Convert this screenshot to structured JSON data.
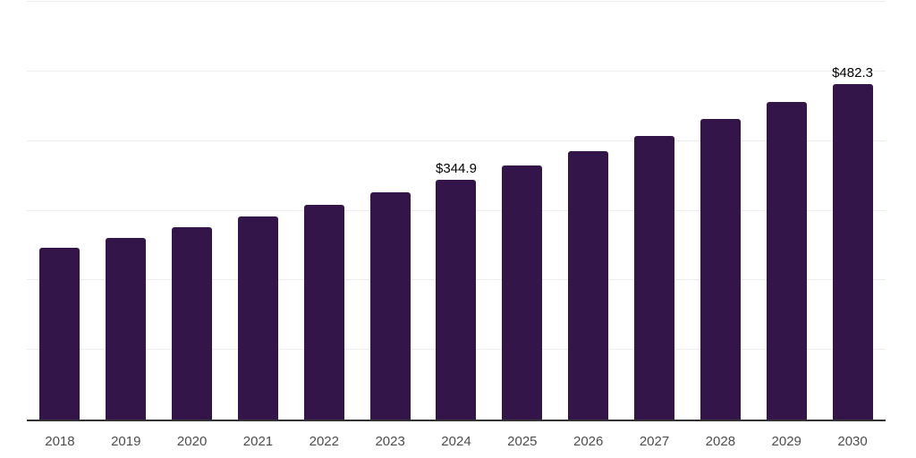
{
  "chart_data": {
    "type": "bar",
    "title": "",
    "xlabel": "",
    "ylabel": "",
    "categories": [
      "2018",
      "2019",
      "2020",
      "2021",
      "2022",
      "2023",
      "2024",
      "2025",
      "2026",
      "2027",
      "2028",
      "2029",
      "2030"
    ],
    "values": [
      246.6,
      260.8,
      275.8,
      291.7,
      308.4,
      326.2,
      344.9,
      364.7,
      385.7,
      407.9,
      431.3,
      456.1,
      482.3
    ],
    "data_labels": {
      "2024": "$344.9",
      "2030": "$482.3"
    },
    "ylim": [
      0,
      600
    ],
    "grid": true,
    "grid_step": 100,
    "legend": false,
    "colors": {
      "bar": "#331549",
      "gridline": "#ececec",
      "axis_line": "#333333",
      "tick_label": "#4d4d4d",
      "data_label": "#000000"
    }
  }
}
